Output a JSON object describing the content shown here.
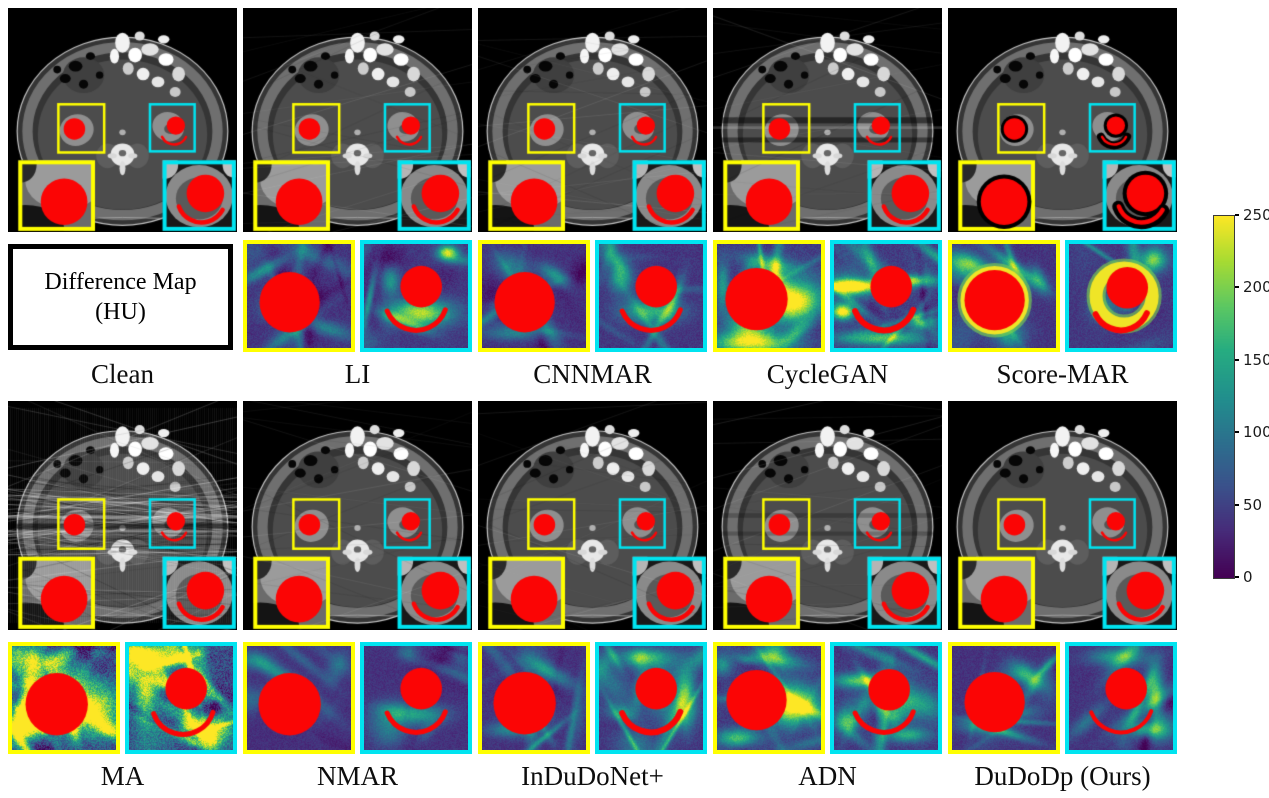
{
  "colors": {
    "yellow": "#ffff00",
    "cyan": "#00e4f0",
    "red": "#fb0505",
    "box_border": "#000000",
    "background": "#ffffff"
  },
  "diff_map_label": {
    "line1": "Difference Map",
    "line2": "(HU)"
  },
  "colorbar": {
    "min": 0,
    "max": 250,
    "unit": "HU",
    "ticks": [
      "250",
      "200",
      "150",
      "100",
      "50",
      "0"
    ],
    "palette": "viridis"
  },
  "panels": [
    {
      "id": "clean",
      "label": "Clean",
      "row": 1,
      "col": 1,
      "ct": {
        "seed": 1,
        "artifact": "none",
        "blackring": false
      },
      "diff": null
    },
    {
      "id": "li",
      "label": "LI",
      "row": 1,
      "col": 2,
      "ct": {
        "seed": 2,
        "artifact": "mild",
        "blackring": false
      },
      "diff": {
        "yellow": {
          "seed": 11,
          "base": 0.16,
          "speckle": 0.1,
          "nblobs": 16,
          "blobAmp": 0.45,
          "streaky": 0.7,
          "hotspots": [
            [
              0.15,
              0.25,
              0.18,
              0.04,
              0.35,
              -0.5
            ],
            [
              0.75,
              0.8,
              0.2,
              0.05,
              0.3,
              0.3
            ]
          ],
          "circle": [
            0.41,
            0.56,
            0.29
          ]
        },
        "cyan": {
          "seed": 12,
          "base": 0.17,
          "speckle": 0.1,
          "nblobs": 14,
          "blobAmp": 0.5,
          "streaky": 0.5,
          "hotspots": [
            [
              0.52,
              0.66,
              0.22,
              0.09,
              0.75,
              0
            ],
            [
              0.8,
              0.08,
              0.07,
              0.05,
              0.8,
              0
            ],
            [
              0.25,
              0.35,
              0.06,
              0.1,
              0.4,
              0
            ]
          ],
          "circle": [
            0.55,
            0.41,
            0.2
          ],
          "arc": [
            0.5,
            0.53,
            0.3,
            0.35,
            2.75,
            5
          ]
        }
      }
    },
    {
      "id": "cnnmar",
      "label": "CNNMAR",
      "row": 1,
      "col": 3,
      "ct": {
        "seed": 3,
        "artifact": "mild",
        "blackring": false
      },
      "diff": {
        "yellow": {
          "seed": 21,
          "base": 0.15,
          "speckle": 0.09,
          "nblobs": 15,
          "blobAmp": 0.4,
          "streaky": 0.7,
          "hotspots": [
            [
              0.7,
              0.3,
              0.12,
              0.05,
              0.4,
              0.6
            ],
            [
              0.3,
              0.85,
              0.2,
              0.05,
              0.3,
              0
            ]
          ],
          "circle": [
            0.41,
            0.56,
            0.29
          ]
        },
        "cyan": {
          "seed": 22,
          "base": 0.16,
          "speckle": 0.1,
          "nblobs": 14,
          "blobAmp": 0.45,
          "streaky": 0.5,
          "hotspots": [
            [
              0.5,
              0.64,
              0.2,
              0.08,
              0.5,
              0
            ],
            [
              0.2,
              0.3,
              0.08,
              0.12,
              0.35,
              0
            ]
          ],
          "circle": [
            0.55,
            0.41,
            0.2
          ],
          "arc": [
            0.5,
            0.53,
            0.3,
            0.35,
            2.75,
            5
          ]
        }
      }
    },
    {
      "id": "cyclegan",
      "label": "CycleGAN",
      "row": 1,
      "col": 4,
      "ct": {
        "seed": 4,
        "artifact": "bands",
        "blackring": false
      },
      "diff": {
        "yellow": {
          "seed": 31,
          "base": 0.18,
          "speckle": 0.12,
          "nblobs": 18,
          "blobAmp": 0.5,
          "streaky": 0.6,
          "hotspots": [
            [
              0.74,
              0.56,
              0.2,
              0.13,
              0.95,
              0
            ],
            [
              0.3,
              0.95,
              0.3,
              0.07,
              0.6,
              0
            ],
            [
              0.05,
              0.4,
              0.05,
              0.15,
              0.5,
              0
            ],
            [
              0.5,
              0.18,
              0.2,
              0.05,
              0.35,
              0.2
            ]
          ],
          "circle": [
            0.38,
            0.53,
            0.3
          ]
        },
        "cyan": {
          "seed": 32,
          "base": 0.18,
          "speckle": 0.12,
          "nblobs": 16,
          "blobAmp": 0.5,
          "streaky": 0.8,
          "hotspots": [
            [
              0.18,
              0.4,
              0.22,
              0.045,
              0.85,
              0
            ],
            [
              0.75,
              0.35,
              0.15,
              0.04,
              0.7,
              0
            ],
            [
              0.45,
              0.9,
              0.3,
              0.05,
              0.55,
              0
            ],
            [
              0.08,
              0.65,
              0.07,
              0.05,
              0.8,
              0
            ],
            [
              0.85,
              0.75,
              0.1,
              0.05,
              0.5,
              0
            ]
          ],
          "circle": [
            0.55,
            0.41,
            0.2
          ],
          "arc": [
            0.48,
            0.53,
            0.3,
            0.35,
            2.75,
            6
          ]
        }
      }
    },
    {
      "id": "scoremar",
      "label": "Score-MAR",
      "row": 1,
      "col": 5,
      "ct": {
        "seed": 5,
        "artifact": "none",
        "blackring": true
      },
      "diff": {
        "yellow": {
          "seed": 41,
          "base": 0.16,
          "speckle": 0.1,
          "nblobs": 14,
          "blobAmp": 0.45,
          "streaky": 0.5,
          "hotspots": [
            [
              0.2,
              0.2,
              0.15,
              0.06,
              0.4,
              0.4
            ]
          ],
          "ring": [
            0.41,
            0.54,
            0.305,
            5
          ],
          "circle": [
            0.41,
            0.54,
            0.29
          ]
        },
        "cyan": {
          "seed": 42,
          "base": 0.17,
          "speckle": 0.1,
          "nblobs": 14,
          "blobAmp": 0.5,
          "streaky": 0.4,
          "hotspots": [
            [
              0.8,
              0.15,
              0.1,
              0.07,
              0.5,
              0
            ]
          ],
          "ring": [
            0.53,
            0.5,
            0.27,
            13
          ],
          "circle": [
            0.56,
            0.42,
            0.2
          ],
          "arc": [
            0.5,
            0.56,
            0.27,
            0.4,
            2.7,
            6
          ]
        }
      }
    },
    {
      "id": "ma",
      "label": "MA",
      "row": 2,
      "col": 1,
      "ct": {
        "seed": 6,
        "artifact": "heavy",
        "blackring": false
      },
      "diff": {
        "yellow": {
          "seed": 51,
          "base": 0.22,
          "speckle": 0.3,
          "nblobs": 30,
          "blobAmp": 0.75,
          "streaky": 0.75,
          "hotspots": [
            [
              0.75,
              0.6,
              0.2,
              0.18,
              0.8,
              0
            ],
            [
              0.2,
              0.15,
              0.25,
              0.1,
              0.7,
              0.3
            ],
            [
              0.15,
              0.75,
              0.12,
              0.1,
              0.6,
              0
            ]
          ],
          "circle": [
            0.43,
            0.56,
            0.3
          ]
        },
        "cyan": {
          "seed": 52,
          "base": 0.22,
          "speckle": 0.3,
          "nblobs": 30,
          "blobAmp": 0.75,
          "streaky": 0.75,
          "hotspots": [
            [
              0.2,
              0.1,
              0.25,
              0.08,
              0.8,
              0
            ],
            [
              0.8,
              0.8,
              0.15,
              0.1,
              0.7,
              0
            ],
            [
              0.15,
              0.5,
              0.08,
              0.2,
              0.6,
              0
            ]
          ],
          "circle": [
            0.55,
            0.41,
            0.2
          ],
          "arc": [
            0.52,
            0.55,
            0.3,
            0.3,
            2.8,
            5
          ]
        }
      }
    },
    {
      "id": "nmar",
      "label": "NMAR",
      "row": 2,
      "col": 2,
      "ct": {
        "seed": 7,
        "artifact": "mild",
        "blackring": false
      },
      "diff": {
        "yellow": {
          "seed": 61,
          "base": 0.14,
          "speckle": 0.08,
          "nblobs": 13,
          "blobAmp": 0.3,
          "streaky": 0.6,
          "hotspots": [
            [
              0.2,
              0.2,
              0.15,
              0.05,
              0.3,
              0.5
            ]
          ],
          "circle": [
            0.41,
            0.56,
            0.3
          ]
        },
        "cyan": {
          "seed": 62,
          "base": 0.15,
          "speckle": 0.09,
          "nblobs": 13,
          "blobAmp": 0.35,
          "streaky": 0.6,
          "hotspots": [
            [
              0.55,
              0.65,
              0.18,
              0.07,
              0.35,
              0
            ]
          ],
          "circle": [
            0.55,
            0.41,
            0.2
          ],
          "arc": [
            0.5,
            0.53,
            0.3,
            0.35,
            2.75,
            5
          ]
        }
      }
    },
    {
      "id": "indudonet",
      "label": "InDuDoNet+",
      "row": 2,
      "col": 3,
      "ct": {
        "seed": 8,
        "artifact": "mild",
        "blackring": false
      },
      "diff": {
        "yellow": {
          "seed": 71,
          "base": 0.15,
          "speckle": 0.09,
          "nblobs": 15,
          "blobAmp": 0.38,
          "streaky": 0.7,
          "hotspots": [
            [
              0.65,
              0.25,
              0.18,
              0.05,
              0.35,
              0.5
            ],
            [
              0.25,
              0.8,
              0.15,
              0.05,
              0.3,
              0
            ]
          ],
          "circle": [
            0.41,
            0.55,
            0.3
          ]
        },
        "cyan": {
          "seed": 72,
          "base": 0.16,
          "speckle": 0.1,
          "nblobs": 16,
          "blobAmp": 0.45,
          "streaky": 0.6,
          "hotspots": [
            [
              0.82,
              0.5,
              0.07,
              0.2,
              0.55,
              0
            ],
            [
              0.45,
              0.1,
              0.2,
              0.06,
              0.45,
              0
            ],
            [
              0.2,
              0.65,
              0.1,
              0.06,
              0.4,
              0
            ]
          ],
          "circle": [
            0.55,
            0.41,
            0.2
          ],
          "arc": [
            0.5,
            0.53,
            0.3,
            0.35,
            2.75,
            6
          ]
        }
      }
    },
    {
      "id": "adn",
      "label": "ADN",
      "row": 2,
      "col": 4,
      "ct": {
        "seed": 9,
        "artifact": "mildbands",
        "blackring": false
      },
      "diff": {
        "yellow": {
          "seed": 81,
          "base": 0.17,
          "speckle": 0.11,
          "nblobs": 16,
          "blobAmp": 0.45,
          "streaky": 0.6,
          "hotspots": [
            [
              0.73,
              0.57,
              0.17,
              0.13,
              0.9,
              0
            ],
            [
              0.2,
              0.88,
              0.15,
              0.06,
              0.55,
              0
            ],
            [
              0.55,
              0.12,
              0.2,
              0.05,
              0.4,
              0.2
            ]
          ],
          "circle": [
            0.38,
            0.52,
            0.29
          ]
        },
        "cyan": {
          "seed": 82,
          "base": 0.17,
          "speckle": 0.11,
          "nblobs": 16,
          "blobAmp": 0.5,
          "streaky": 0.6,
          "hotspots": [
            [
              0.25,
              0.33,
              0.18,
              0.05,
              0.6,
              0
            ],
            [
              0.12,
              0.72,
              0.08,
              0.08,
              0.55,
              0
            ],
            [
              0.7,
              0.85,
              0.15,
              0.05,
              0.45,
              0
            ]
          ],
          "circle": [
            0.53,
            0.42,
            0.2
          ],
          "arc": [
            0.48,
            0.53,
            0.3,
            0.35,
            2.75,
            5
          ]
        }
      }
    },
    {
      "id": "dudodp",
      "label": "DuDoDp (Ours)",
      "row": 2,
      "col": 5,
      "ct": {
        "seed": 10,
        "artifact": "none",
        "blackring": false
      },
      "diff": {
        "yellow": {
          "seed": 91,
          "base": 0.15,
          "speckle": 0.09,
          "nblobs": 15,
          "blobAmp": 0.4,
          "streaky": 0.7,
          "hotspots": [
            [
              0.72,
              0.28,
              0.13,
              0.06,
              0.5,
              0.6
            ],
            [
              0.3,
              0.78,
              0.18,
              0.05,
              0.35,
              0.1
            ]
          ],
          "circle": [
            0.41,
            0.54,
            0.29
          ]
        },
        "cyan": {
          "seed": 92,
          "base": 0.15,
          "speckle": 0.09,
          "nblobs": 15,
          "blobAmp": 0.42,
          "streaky": 0.6,
          "hotspots": [
            [
              0.82,
              0.45,
              0.06,
              0.18,
              0.6,
              0
            ],
            [
              0.45,
              0.1,
              0.2,
              0.06,
              0.4,
              0
            ],
            [
              0.75,
              0.8,
              0.1,
              0.05,
              0.45,
              0
            ]
          ],
          "circle": [
            0.55,
            0.41,
            0.2
          ],
          "arc": [
            0.5,
            0.52,
            0.31,
            0.35,
            2.75,
            4
          ]
        }
      }
    }
  ]
}
